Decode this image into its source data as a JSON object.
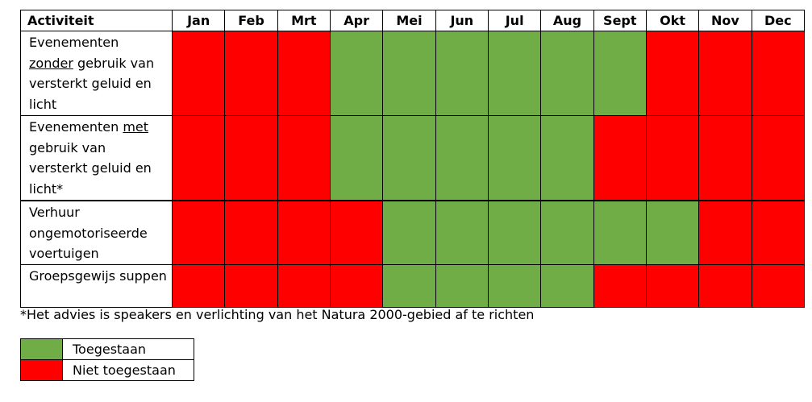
{
  "table": {
    "header_activity": "Activiteit",
    "months": [
      "Jan",
      "Feb",
      "Mrt",
      "Apr",
      "Mei",
      "Jun",
      "Jul",
      "Aug",
      "Sept",
      "Okt",
      "Nov",
      "Dec"
    ],
    "rows": [
      {
        "label_parts": [
          {
            "text": "Evenementen ",
            "u": false
          },
          {
            "text": "zonder",
            "u": true
          },
          {
            "text": " gebruik van versterkt geluid en licht",
            "u": false
          }
        ],
        "status": [
          "denied",
          "denied",
          "denied",
          "allowed",
          "allowed",
          "allowed",
          "allowed",
          "allowed",
          "allowed",
          "denied",
          "denied",
          "denied"
        ]
      },
      {
        "label_parts": [
          {
            "text": "Evenementen ",
            "u": false
          },
          {
            "text": "met",
            "u": true
          },
          {
            "text": " gebruik van versterkt geluid en licht*",
            "u": false
          }
        ],
        "status": [
          "denied",
          "denied",
          "denied",
          "allowed",
          "allowed",
          "allowed",
          "allowed",
          "allowed",
          "denied",
          "denied",
          "denied",
          "denied"
        ]
      },
      {
        "label_parts": [
          {
            "text": "Verhuur ongemotoriseerde voertuigen",
            "u": false
          }
        ],
        "status": [
          "denied",
          "denied",
          "denied",
          "denied",
          "allowed",
          "allowed",
          "allowed",
          "allowed",
          "allowed",
          "allowed",
          "denied",
          "denied"
        ]
      },
      {
        "label_parts": [
          {
            "text": "Groepsgewijs suppen",
            "u": false
          }
        ],
        "status": [
          "denied",
          "denied",
          "denied",
          "denied",
          "allowed",
          "allowed",
          "allowed",
          "allowed",
          "denied",
          "denied",
          "denied",
          "denied"
        ]
      }
    ]
  },
  "footnote": "*Het advies is speakers en verlichting van het Natura 2000-gebied af te richten",
  "legend": {
    "allowed_label": "Toegestaan",
    "denied_label": "Niet toegestaan"
  },
  "colors": {
    "allowed": "#70ad47",
    "denied": "#ff0000"
  }
}
